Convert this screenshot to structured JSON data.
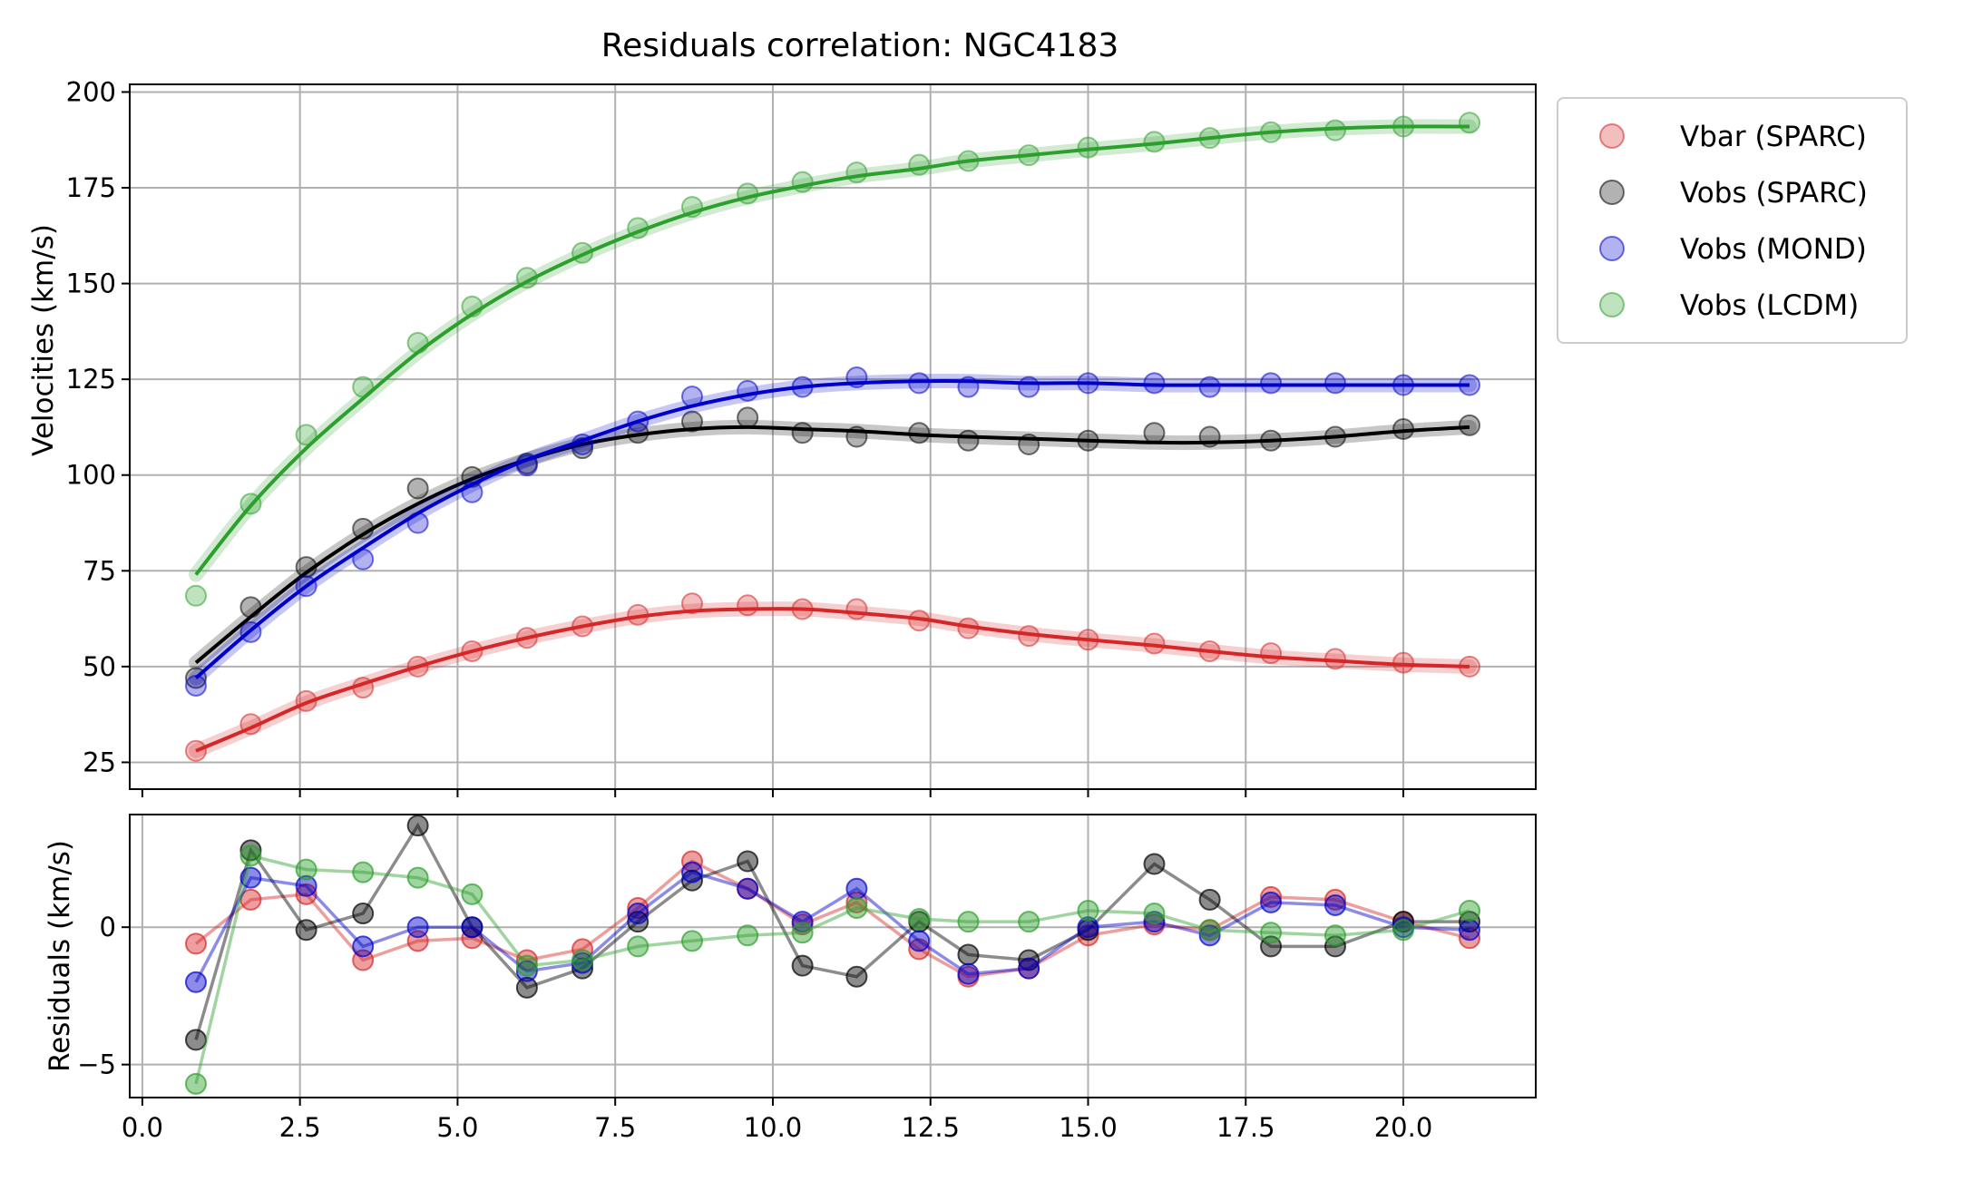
{
  "chart_data": {
    "type": "line",
    "title": "Residuals correlation: NGC4183",
    "x": [
      0.85,
      1.72,
      2.59,
      3.46,
      4.33,
      5.2,
      6.07,
      6.94,
      7.81,
      8.68,
      9.55,
      10.42,
      11.29,
      12.16,
      13.03,
      13.9,
      14.77,
      15.64,
      16.51,
      17.38,
      18.25,
      19.12,
      20.0,
      21.0
    ],
    "x_real": [
      0.85,
      1.72,
      2.59,
      3.46,
      4.33,
      5.2,
      6.07,
      6.94,
      7.81,
      8.68,
      9.55,
      10.42,
      11.29,
      12.16,
      13.03,
      13.9,
      14.77,
      15.64,
      16.51,
      17.38,
      18.25,
      19.12,
      20.0,
      21.0
    ],
    "top_panel": {
      "ylabel": "Velocities (km/s)",
      "ylim": [
        18,
        202
      ],
      "yticks": [
        25,
        50,
        75,
        100,
        125,
        150,
        175,
        200
      ],
      "series": [
        {
          "name": "Vbar (SPARC)",
          "color": "#d62728",
          "points_x": [
            0.85,
            1.72,
            2.6,
            3.5,
            4.37,
            5.23,
            6.1,
            6.98,
            7.86,
            8.72,
            9.6,
            10.47,
            11.33,
            12.32,
            13.1,
            14.06,
            15.0,
            16.05,
            16.93,
            17.9,
            18.92,
            20.0,
            21.05
          ],
          "points_y": [
            28,
            35,
            41,
            44.5,
            50,
            54,
            57.5,
            60.5,
            63.5,
            66.5,
            66,
            65,
            65,
            62,
            60,
            58,
            57,
            56,
            54,
            53.5,
            52,
            51,
            50
          ],
          "fit_y": [
            28,
            34,
            40.5,
            45.5,
            50,
            54,
            57.5,
            60.5,
            63,
            64.5,
            65,
            65,
            64,
            62.5,
            60.5,
            58.5,
            57,
            55.5,
            54,
            52.5,
            51.5,
            50.5,
            50
          ]
        },
        {
          "name": "Vobs (SPARC)",
          "color": "#000000",
          "points_x": [
            0.85,
            1.72,
            2.6,
            3.5,
            4.37,
            5.23,
            6.1,
            6.98,
            7.86,
            8.72,
            9.6,
            10.47,
            11.33,
            12.32,
            13.1,
            14.06,
            15.0,
            16.05,
            16.93,
            17.9,
            18.92,
            20.0,
            21.05
          ],
          "points_y": [
            47,
            65.5,
            76,
            86,
            96.5,
            99.5,
            103,
            107,
            111,
            114,
            115,
            111,
            110,
            111,
            109,
            108,
            109,
            111,
            110,
            109,
            110,
            112,
            113
          ],
          "fit_y": [
            51,
            63,
            74.5,
            84.5,
            92.5,
            99,
            104,
            108,
            110.5,
            112,
            112.5,
            112,
            111.5,
            110.5,
            110,
            109.5,
            109,
            108.5,
            108.5,
            109,
            110,
            111.5,
            112.5
          ]
        },
        {
          "name": "Vobs (MOND)",
          "color": "#0000cc",
          "points_x": [
            0.85,
            1.72,
            2.6,
            3.5,
            4.37,
            5.23,
            6.1,
            6.98,
            7.86,
            8.72,
            9.6,
            10.47,
            11.33,
            12.32,
            13.1,
            14.06,
            15.0,
            16.05,
            16.93,
            17.9,
            18.92,
            20.0,
            21.05
          ],
          "points_y": [
            45,
            59,
            71,
            78,
            87.5,
            95.5,
            102.5,
            108,
            114,
            120.5,
            122,
            123,
            125.5,
            124,
            123,
            123,
            124,
            124,
            123,
            124,
            124,
            123.5,
            123.5
          ],
          "fit_y": [
            47,
            59.5,
            71,
            81,
            90,
            97.5,
            104,
            109,
            114,
            118,
            121,
            123,
            124,
            124.5,
            124.5,
            124,
            124,
            123.5,
            123.5,
            123.5,
            123.5,
            123.5,
            123.5
          ]
        },
        {
          "name": "Vobs (LCDM)",
          "color": "#2ca02c",
          "points_x": [
            0.85,
            1.72,
            2.6,
            3.5,
            4.37,
            5.23,
            6.1,
            6.98,
            7.86,
            8.72,
            9.6,
            10.47,
            11.33,
            12.32,
            13.1,
            14.06,
            15.0,
            16.05,
            16.93,
            17.9,
            18.92,
            20.0,
            21.05
          ],
          "points_y": [
            68.5,
            92.5,
            110.5,
            123,
            134.5,
            144,
            151.5,
            158,
            164.5,
            170,
            173.5,
            176.5,
            179,
            181,
            182,
            183.5,
            185.5,
            187,
            188,
            189.5,
            190,
            191,
            192
          ],
          "fit_y": [
            74,
            92,
            107,
            120,
            132,
            142,
            150.5,
            157.5,
            163.5,
            168.5,
            172.5,
            175.5,
            178,
            180,
            182,
            183.5,
            185,
            186.5,
            188,
            189.5,
            190.5,
            191,
            191
          ]
        }
      ]
    },
    "bottom_panel": {
      "ylabel": "Residuals (km/s)",
      "ylim": [
        -6.2,
        4.1
      ],
      "yticks": [
        -5,
        0
      ],
      "xticks": [
        "0.0",
        "2.5",
        "5.0",
        "7.5",
        "10.0",
        "12.5",
        "15.0",
        "17.5",
        "20.0"
      ],
      "xtick_values": [
        0,
        2.5,
        5,
        7.5,
        10,
        12.5,
        15,
        17.5,
        20
      ],
      "xlim": [
        -0.2,
        22.1
      ],
      "series": [
        {
          "name": "Vbar (SPARC)",
          "color": "#d62728",
          "values": [
            -0.6,
            1.0,
            1.2,
            -1.2,
            -0.5,
            -0.4,
            -1.2,
            -0.8,
            0.7,
            2.4,
            1.4,
            0.1,
            0.9,
            -0.8,
            -1.8,
            -1.5,
            -0.3,
            0.1,
            -0.1,
            1.1,
            1.0,
            0.2,
            -0.4
          ]
        },
        {
          "name": "Vobs (SPARC)",
          "color": "#000000",
          "values": [
            -4.1,
            2.8,
            -0.1,
            0.5,
            3.7,
            0.0,
            -2.2,
            -1.5,
            0.2,
            1.7,
            2.4,
            -1.4,
            -1.8,
            0.2,
            -1.0,
            -1.2,
            -0.1,
            2.3,
            1.0,
            -0.7,
            -0.7,
            0.2,
            0.2
          ]
        },
        {
          "name": "Vobs (MOND)",
          "color": "#0000cc",
          "values": [
            -2.0,
            1.8,
            1.5,
            -0.7,
            0.0,
            0.0,
            -1.6,
            -1.3,
            0.5,
            2.0,
            1.4,
            0.2,
            1.4,
            -0.5,
            -1.7,
            -1.5,
            0.0,
            0.2,
            -0.3,
            0.9,
            0.8,
            0.0,
            -0.1
          ]
        },
        {
          "name": "Vobs (LCDM)",
          "color": "#2ca02c",
          "values": [
            -5.7,
            2.6,
            2.1,
            2.0,
            1.8,
            1.2,
            -1.4,
            -1.2,
            -0.7,
            -0.5,
            -0.3,
            -0.2,
            0.7,
            0.3,
            0.2,
            0.2,
            0.6,
            0.5,
            -0.1,
            -0.2,
            -0.3,
            -0.1,
            0.6
          ]
        }
      ]
    },
    "grid": true,
    "legend": {
      "placement": "outside-top-right",
      "entries": [
        "Vbar (SPARC)",
        "Vobs (SPARC)",
        "Vobs (MOND)",
        "Vobs (LCDM)"
      ]
    }
  }
}
